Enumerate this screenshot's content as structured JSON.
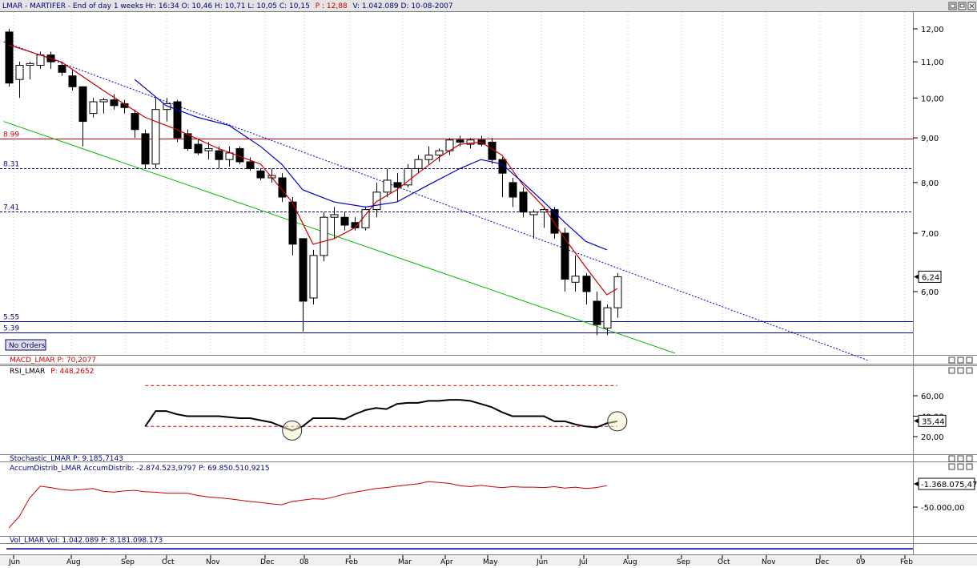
{
  "header": {
    "info_left": "LMAR - MARTIFER - End of day 1 weeks Hr: 16:34  O: 10,46  H: 10,71  L: 10,05  C: 10,15",
    "info_p": "P : 12,88",
    "info_right": "V: 1.042.089  D: 10-08-2007"
  },
  "no_orders_label": "No Orders",
  "panel_titles": {
    "macd": "MACD_LMAR  P: 70,2077",
    "rsi_name": "RSI_LMAR",
    "rsi_p": "P: 448,2652",
    "stoch": "Stochastic_LMAR  P: 9.185,7143",
    "accum": "AccumDistrib_LMAR  AccumDistrib: -2.874.523,9797   P: 69.850.510,9215",
    "vol": "Vol_LMAR  Vol: 1.042.089   P: 8.181.098.173"
  },
  "x_labels": [
    "Jun",
    "Aug",
    "Sep",
    "Oct",
    "Nov",
    "Dec",
    "08",
    "Feb",
    "Mar",
    "Apr",
    "May",
    "Jun",
    "Jul",
    "Aug",
    "Sep",
    "Oct",
    "Nov",
    "Dec",
    "09",
    "Feb"
  ],
  "colors": {
    "candle_down": "#000000",
    "candle_up": "#ffffff",
    "ma_fast": "#cc0000",
    "ma_slow": "#0000cc",
    "support_red": "#cc0000",
    "level_blue": "#000080",
    "trend_green": "#00bb00",
    "trend_blue": "#0000cc",
    "rsi_line": "#000000",
    "accum_line": "#cc0000",
    "vol_line": "#0000aa"
  },
  "chart_data": [
    {
      "type": "candlestick",
      "title": "LMAR - MARTIFER",
      "yticks": [
        "12,00",
        "11,00",
        "10,00",
        "9,00",
        "8,00",
        "7,00",
        "6,00"
      ],
      "ylim": [
        5.0,
        12.5
      ],
      "y_scale": "log",
      "last_price": "6,24",
      "levels": [
        {
          "label": "8.99",
          "value": 8.99,
          "color": "#cc0000",
          "style": "solid"
        },
        {
          "label": "8.31",
          "value": 8.31,
          "color": "#000080",
          "style": "dashed"
        },
        {
          "label": "7.41",
          "value": 7.41,
          "color": "#000080",
          "style": "dashed"
        },
        {
          "label": "5.55",
          "value": 5.55,
          "color": "#000080",
          "style": "solid"
        },
        {
          "label": "5.39",
          "value": 5.39,
          "color": "#000080",
          "style": "solid"
        }
      ],
      "candles": [
        {
          "o": 11.9,
          "h": 12.0,
          "l": 10.3,
          "c": 10.4
        },
        {
          "o": 10.5,
          "h": 11.0,
          "l": 10.0,
          "c": 10.9
        },
        {
          "o": 10.9,
          "h": 11.0,
          "l": 10.5,
          "c": 10.95
        },
        {
          "o": 10.9,
          "h": 11.3,
          "l": 10.8,
          "c": 11.2
        },
        {
          "o": 11.2,
          "h": 11.3,
          "l": 10.8,
          "c": 11.0
        },
        {
          "o": 10.9,
          "h": 11.0,
          "l": 10.6,
          "c": 10.7
        },
        {
          "o": 10.6,
          "h": 10.8,
          "l": 10.2,
          "c": 10.3
        },
        {
          "o": 10.3,
          "h": 10.3,
          "l": 8.8,
          "c": 9.4
        },
        {
          "o": 9.6,
          "h": 10.0,
          "l": 9.5,
          "c": 9.9
        },
        {
          "o": 9.9,
          "h": 10.0,
          "l": 9.6,
          "c": 9.95
        },
        {
          "o": 9.95,
          "h": 10.1,
          "l": 9.7,
          "c": 9.8
        },
        {
          "o": 9.85,
          "h": 9.95,
          "l": 9.6,
          "c": 9.75
        },
        {
          "o": 9.6,
          "h": 9.7,
          "l": 9.0,
          "c": 9.2
        },
        {
          "o": 9.1,
          "h": 9.2,
          "l": 8.3,
          "c": 8.4
        },
        {
          "o": 8.4,
          "h": 10.0,
          "l": 8.3,
          "c": 9.7
        },
        {
          "o": 9.7,
          "h": 10.0,
          "l": 9.4,
          "c": 9.85
        },
        {
          "o": 9.9,
          "h": 9.95,
          "l": 8.9,
          "c": 9.0
        },
        {
          "o": 9.1,
          "h": 9.2,
          "l": 8.7,
          "c": 8.75
        },
        {
          "o": 8.85,
          "h": 8.95,
          "l": 8.6,
          "c": 8.65
        },
        {
          "o": 8.7,
          "h": 8.9,
          "l": 8.5,
          "c": 8.75
        },
        {
          "o": 8.7,
          "h": 8.8,
          "l": 8.3,
          "c": 8.5
        },
        {
          "o": 8.5,
          "h": 8.8,
          "l": 8.35,
          "c": 8.65
        },
        {
          "o": 8.75,
          "h": 8.8,
          "l": 8.4,
          "c": 8.45
        },
        {
          "o": 8.45,
          "h": 8.55,
          "l": 8.25,
          "c": 8.3
        },
        {
          "o": 8.25,
          "h": 8.3,
          "l": 8.05,
          "c": 8.1
        },
        {
          "o": 8.1,
          "h": 8.3,
          "l": 8.0,
          "c": 8.15
        },
        {
          "o": 8.1,
          "h": 8.2,
          "l": 7.6,
          "c": 7.7
        },
        {
          "o": 7.6,
          "h": 7.7,
          "l": 6.6,
          "c": 6.8
        },
        {
          "o": 6.9,
          "h": 6.9,
          "l": 5.4,
          "c": 5.85
        },
        {
          "o": 5.9,
          "h": 6.7,
          "l": 5.8,
          "c": 6.6
        },
        {
          "o": 6.6,
          "h": 7.4,
          "l": 6.5,
          "c": 7.3
        },
        {
          "o": 7.3,
          "h": 7.5,
          "l": 6.9,
          "c": 7.35
        },
        {
          "o": 7.3,
          "h": 7.4,
          "l": 7.05,
          "c": 7.15
        },
        {
          "o": 7.2,
          "h": 7.3,
          "l": 7.05,
          "c": 7.1
        },
        {
          "o": 7.1,
          "h": 7.5,
          "l": 7.05,
          "c": 7.45
        },
        {
          "o": 7.45,
          "h": 8.0,
          "l": 7.3,
          "c": 7.8
        },
        {
          "o": 7.8,
          "h": 8.3,
          "l": 7.7,
          "c": 8.05
        },
        {
          "o": 8.0,
          "h": 8.2,
          "l": 7.6,
          "c": 7.9
        },
        {
          "o": 7.95,
          "h": 8.4,
          "l": 7.9,
          "c": 8.3
        },
        {
          "o": 8.3,
          "h": 8.6,
          "l": 8.2,
          "c": 8.5
        },
        {
          "o": 8.5,
          "h": 8.8,
          "l": 8.4,
          "c": 8.6
        },
        {
          "o": 8.6,
          "h": 8.75,
          "l": 8.45,
          "c": 8.7
        },
        {
          "o": 8.7,
          "h": 9.0,
          "l": 8.6,
          "c": 8.95
        },
        {
          "o": 8.95,
          "h": 9.05,
          "l": 8.8,
          "c": 8.9
        },
        {
          "o": 8.85,
          "h": 9.0,
          "l": 8.75,
          "c": 8.95
        },
        {
          "o": 8.95,
          "h": 9.05,
          "l": 8.8,
          "c": 8.85
        },
        {
          "o": 8.9,
          "h": 9.0,
          "l": 8.4,
          "c": 8.5
        },
        {
          "o": 8.5,
          "h": 8.55,
          "l": 7.7,
          "c": 8.2
        },
        {
          "o": 8.0,
          "h": 8.1,
          "l": 7.5,
          "c": 7.7
        },
        {
          "o": 7.8,
          "h": 7.9,
          "l": 7.3,
          "c": 7.4
        },
        {
          "o": 7.35,
          "h": 7.45,
          "l": 6.9,
          "c": 7.4
        },
        {
          "o": 7.4,
          "h": 7.5,
          "l": 7.1,
          "c": 7.45
        },
        {
          "o": 7.45,
          "h": 7.5,
          "l": 6.9,
          "c": 7.0
        },
        {
          "o": 7.0,
          "h": 7.1,
          "l": 6.0,
          "c": 6.2
        },
        {
          "o": 6.15,
          "h": 6.6,
          "l": 6.0,
          "c": 6.25
        },
        {
          "o": 6.25,
          "h": 6.3,
          "l": 5.8,
          "c": 6.0
        },
        {
          "o": 5.85,
          "h": 6.0,
          "l": 5.35,
          "c": 5.5
        },
        {
          "o": 5.45,
          "h": 5.8,
          "l": 5.35,
          "c": 5.75
        },
        {
          "o": 5.75,
          "h": 6.3,
          "l": 5.6,
          "c": 6.24
        }
      ],
      "ma_fast": [
        [
          0,
          11.5
        ],
        [
          5,
          11.0
        ],
        [
          9,
          10.2
        ],
        [
          13,
          9.5
        ],
        [
          16,
          9.2
        ],
        [
          20,
          8.75
        ],
        [
          24,
          8.4
        ],
        [
          27,
          7.6
        ],
        [
          29,
          6.8
        ],
        [
          31,
          6.9
        ],
        [
          33,
          7.1
        ],
        [
          35,
          7.6
        ],
        [
          37,
          7.85
        ],
        [
          39,
          8.2
        ],
        [
          41,
          8.55
        ],
        [
          43,
          8.85
        ],
        [
          45,
          8.9
        ],
        [
          47,
          8.6
        ],
        [
          49,
          7.95
        ],
        [
          51,
          7.5
        ],
        [
          53,
          6.9
        ],
        [
          55,
          6.4
        ],
        [
          57,
          5.95
        ],
        [
          58,
          6.05
        ]
      ],
      "ma_slow": [
        [
          12,
          10.5
        ],
        [
          15,
          9.8
        ],
        [
          18,
          9.5
        ],
        [
          21,
          9.3
        ],
        [
          24,
          8.8
        ],
        [
          26,
          8.4
        ],
        [
          28,
          7.85
        ],
        [
          31,
          7.6
        ],
        [
          34,
          7.5
        ],
        [
          37,
          7.6
        ],
        [
          40,
          7.95
        ],
        [
          43,
          8.3
        ],
        [
          45,
          8.5
        ],
        [
          47,
          8.4
        ],
        [
          49,
          8.0
        ],
        [
          51,
          7.6
        ],
        [
          53,
          7.2
        ],
        [
          55,
          6.85
        ],
        [
          57,
          6.7
        ]
      ],
      "trend_green": [
        [
          -0.5,
          9.4
        ],
        [
          63.5,
          5.1
        ]
      ],
      "trend_blue": [
        [
          -0.5,
          11.6
        ],
        [
          82,
          5.0
        ]
      ]
    },
    {
      "type": "line",
      "title": "RSI_LMAR",
      "yticks": [
        "60,00",
        "40,00",
        "20,00"
      ],
      "ylim": [
        10,
        80
      ],
      "last_value": "35,44",
      "bands": [
        70,
        30
      ],
      "x_start": 13,
      "values": [
        30,
        45,
        45,
        42,
        40,
        40,
        40,
        40,
        39,
        38,
        38,
        36,
        34,
        30,
        26,
        30,
        38,
        38,
        38,
        37,
        42,
        46,
        48,
        47,
        52,
        53,
        53,
        55,
        55,
        56,
        56,
        55,
        52,
        49,
        44,
        40,
        40,
        40,
        40,
        35,
        35,
        32,
        30,
        29,
        33,
        35
      ]
    },
    {
      "type": "line",
      "title": "AccumDistrib_LMAR",
      "yticks": [
        "-50.000,00"
      ],
      "last_value": "-1.368.075,47",
      "x_start": 0,
      "values": [
        -95,
        -70,
        -30,
        -5,
        -8,
        -12,
        -14,
        -12,
        -10,
        -16,
        -18,
        -15,
        -14,
        -17,
        -18,
        -20,
        -20,
        -20,
        -25,
        -28,
        -30,
        -32,
        -35,
        -38,
        -40,
        -43,
        -45,
        -38,
        -35,
        -32,
        -33,
        -28,
        -22,
        -18,
        -14,
        -10,
        -8,
        -5,
        -2,
        0,
        5,
        3,
        1,
        -4,
        -6,
        -3,
        -6,
        -8,
        -6,
        -7,
        -7,
        -8,
        -6,
        -9,
        -7,
        -10,
        -8,
        -4
      ]
    }
  ]
}
